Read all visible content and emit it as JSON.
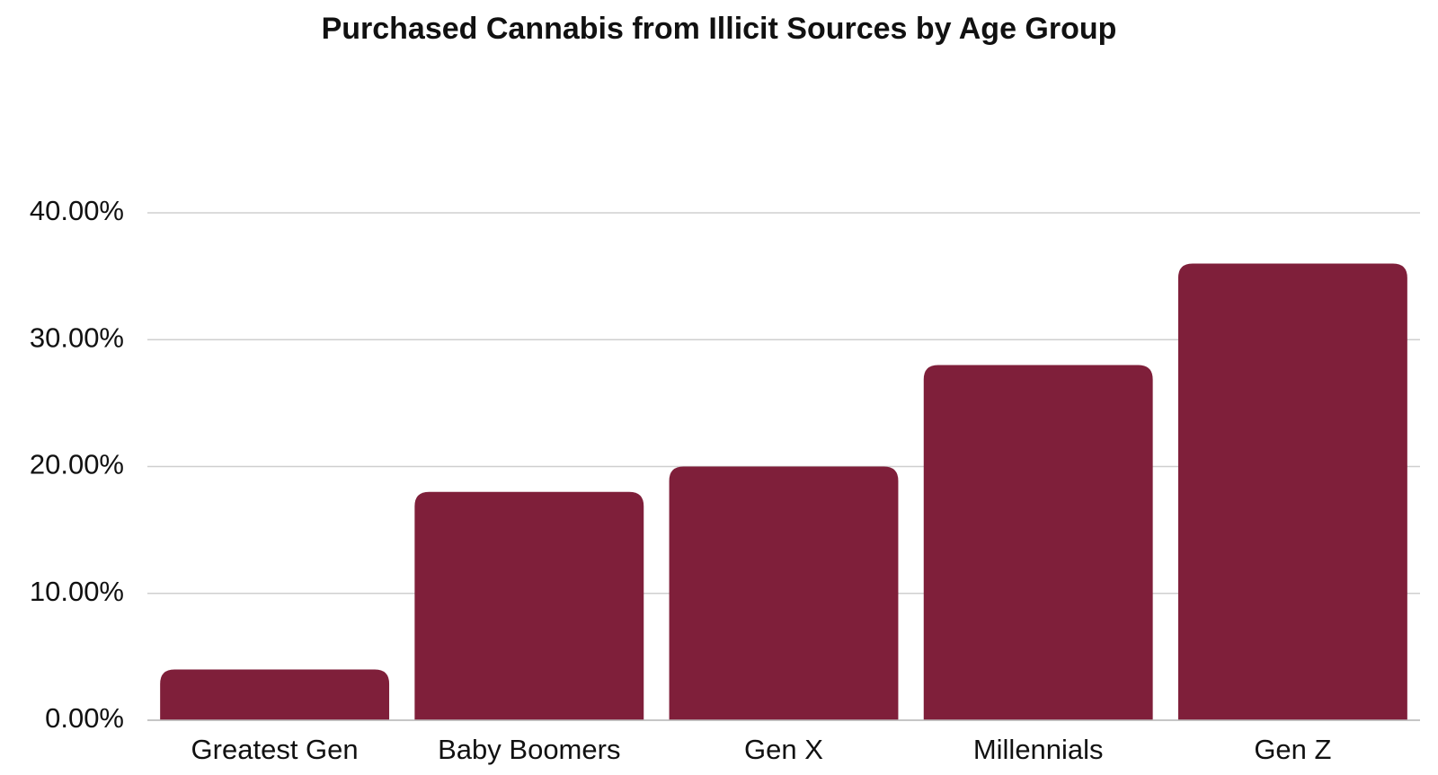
{
  "chart_data": {
    "type": "bar",
    "title": "Purchased Cannabis from Illicit Sources by Age Group",
    "categories": [
      "Greatest Gen",
      "Baby Boomers",
      "Gen X",
      "Millennials",
      "Gen Z"
    ],
    "values": [
      4,
      18,
      20,
      28,
      36
    ],
    "color": "#7f1f3a",
    "ylim": [
      0,
      40
    ],
    "yticks": [
      {
        "value": 0,
        "label": "0.00%"
      },
      {
        "value": 10,
        "label": "10.00%"
      },
      {
        "value": 20,
        "label": "20.00%"
      },
      {
        "value": 30,
        "label": "30.00%"
      },
      {
        "value": 40,
        "label": "40.00%"
      }
    ],
    "grid": true
  }
}
